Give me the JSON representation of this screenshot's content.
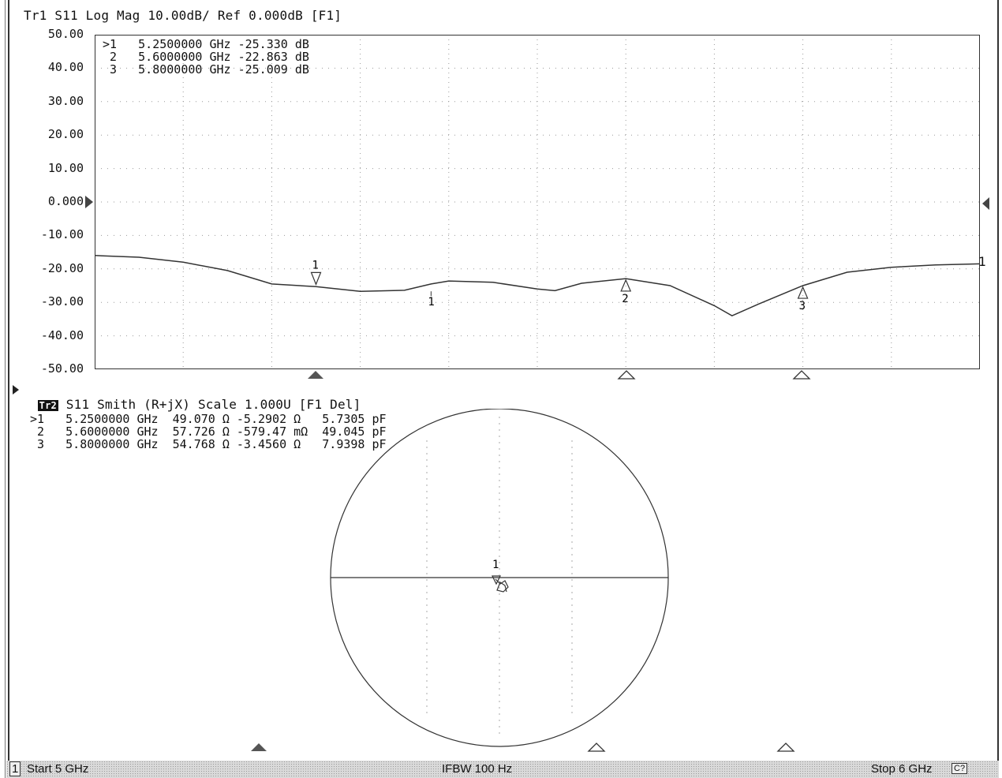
{
  "trace1": {
    "header": "Tr1 S11 Log Mag 10.00dB/ Ref 0.000dB [F1]",
    "y_ticks": [
      "50.00",
      "40.00",
      "30.00",
      "20.00",
      "10.00",
      "0.000",
      "-10.00",
      "-20.00",
      "-30.00",
      "-40.00",
      "-50.00"
    ],
    "markers": [
      {
        "id": ">1",
        "freq": "5.2500000 GHz",
        "value": "-25.330 dB"
      },
      {
        "id": " 2",
        "freq": "5.6000000 GHz",
        "value": "-22.863 dB"
      },
      {
        "id": " 3",
        "freq": "5.8000000 GHz",
        "value": "-25.009 dB"
      }
    ],
    "trace_end_label": "1",
    "marker_labels": [
      "1",
      "2",
      "3"
    ],
    "ref_marker_label": "1"
  },
  "trace2": {
    "badge": "Tr2",
    "header": "S11 Smith (R+jX) Scale 1.000U [F1 Del]",
    "markers": [
      {
        "id": ">1",
        "freq": "5.2500000 GHz",
        "r": "49.070 Ω",
        "x": "-5.2902 Ω",
        "c": "5.7305 pF"
      },
      {
        "id": " 2",
        "freq": "5.6000000 GHz",
        "r": "57.726 Ω",
        "x": "-579.47 mΩ",
        "c": "49.045 pF"
      },
      {
        "id": " 3",
        "freq": "5.8000000 GHz",
        "r": "54.768 Ω",
        "x": "-3.4560 Ω",
        "c": "7.9398 pF"
      }
    ],
    "smith_label": "1"
  },
  "status": {
    "channel": "1",
    "start": "Start 5 GHz",
    "ifbw": "IFBW 100 Hz",
    "stop": "Stop 6 GHz",
    "badge": "C?"
  },
  "colors": {
    "trace": "#333333",
    "grid": "#9a9a9a",
    "text": "#111111"
  },
  "chart_data": {
    "type": "line",
    "title": "Tr1 S11 Log Mag 10.00dB/ Ref 0.000dB [F1]",
    "xlabel": "",
    "ylabel": "",
    "xlim": [
      5.0,
      6.0
    ],
    "ylim": [
      -50,
      50
    ],
    "grid": true,
    "series": [
      {
        "name": "S11",
        "x": [
          5.0,
          5.05,
          5.1,
          5.15,
          5.2,
          5.25,
          5.3,
          5.35,
          5.38,
          5.4,
          5.45,
          5.5,
          5.52,
          5.55,
          5.6,
          5.65,
          5.7,
          5.72,
          5.75,
          5.8,
          5.85,
          5.9,
          5.95,
          6.0
        ],
        "y": [
          -16,
          -16.5,
          -18,
          -20.5,
          -24.5,
          -25.3,
          -26.7,
          -26.4,
          -24.5,
          -23.6,
          -24,
          -26,
          -26.5,
          -24.3,
          -22.9,
          -25,
          -31,
          -34,
          -30.5,
          -25.0,
          -21,
          -19.5,
          -18.8,
          -18.5
        ]
      }
    ],
    "markers": [
      {
        "id": "1",
        "x": 5.25,
        "y": -25.33
      },
      {
        "id": "2",
        "x": 5.6,
        "y": -22.863
      },
      {
        "id": "3",
        "x": 5.8,
        "y": -25.009
      }
    ]
  }
}
